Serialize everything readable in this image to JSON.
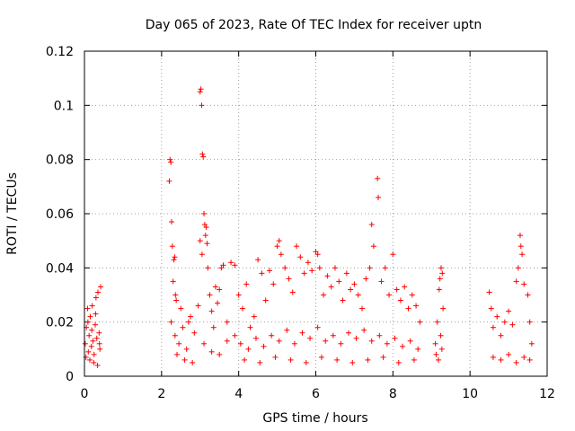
{
  "chart_data": {
    "type": "scatter",
    "title": "Day 065 of 2023, Rate Of TEC Index for receiver uptn",
    "xlabel": "GPS time / hours",
    "ylabel": "ROTI / TECUs",
    "xlim": [
      0,
      12
    ],
    "ylim": [
      0,
      0.12
    ],
    "x_ticks": [
      0,
      2,
      4,
      6,
      8,
      10,
      12
    ],
    "x_tick_labels": [
      "0",
      "2",
      "4",
      "6",
      "8",
      "10",
      "12"
    ],
    "y_ticks": [
      0,
      0.02,
      0.04,
      0.06,
      0.08,
      0.1,
      0.12
    ],
    "y_tick_labels": [
      "0",
      "0.02",
      "0.04",
      "0.06",
      "0.08",
      "0.1",
      "0.12"
    ],
    "grid": true,
    "marker": "+",
    "color": "#ff0000",
    "series": [
      {
        "name": "ROTI",
        "points": [
          [
            0.02,
            0.012
          ],
          [
            0.05,
            0.018
          ],
          [
            0.08,
            0.025
          ],
          [
            0.1,
            0.009
          ],
          [
            0.12,
            0.015
          ],
          [
            0.15,
            0.022
          ],
          [
            0.18,
            0.011
          ],
          [
            0.2,
            0.026
          ],
          [
            0.22,
            0.013
          ],
          [
            0.25,
            0.008
          ],
          [
            0.28,
            0.019
          ],
          [
            0.3,
            0.029
          ],
          [
            0.32,
            0.014
          ],
          [
            0.35,
            0.031
          ],
          [
            0.38,
            0.016
          ],
          [
            0.4,
            0.01
          ],
          [
            0.42,
            0.033
          ],
          [
            0.04,
            0.007
          ],
          [
            0.14,
            0.006
          ],
          [
            0.24,
            0.005
          ],
          [
            0.34,
            0.004
          ],
          [
            0.09,
            0.02
          ],
          [
            0.19,
            0.017
          ],
          [
            0.29,
            0.023
          ],
          [
            0.39,
            0.012
          ],
          [
            2.2,
            0.072
          ],
          [
            2.22,
            0.08
          ],
          [
            2.24,
            0.079
          ],
          [
            2.26,
            0.057
          ],
          [
            2.28,
            0.048
          ],
          [
            2.3,
            0.035
          ],
          [
            2.32,
            0.043
          ],
          [
            2.34,
            0.044
          ],
          [
            2.36,
            0.03
          ],
          [
            2.38,
            0.028
          ],
          [
            2.25,
            0.02
          ],
          [
            2.35,
            0.015
          ],
          [
            2.45,
            0.012
          ],
          [
            2.55,
            0.018
          ],
          [
            2.65,
            0.01
          ],
          [
            2.75,
            0.022
          ],
          [
            2.85,
            0.016
          ],
          [
            2.95,
            0.026
          ],
          [
            2.4,
            0.008
          ],
          [
            2.6,
            0.006
          ],
          [
            2.8,
            0.005
          ],
          [
            2.5,
            0.025
          ],
          [
            2.7,
            0.02
          ],
          [
            3.0,
            0.105
          ],
          [
            3.02,
            0.106
          ],
          [
            3.04,
            0.1
          ],
          [
            3.06,
            0.082
          ],
          [
            3.08,
            0.081
          ],
          [
            3.1,
            0.06
          ],
          [
            3.12,
            0.056
          ],
          [
            3.14,
            0.052
          ],
          [
            3.16,
            0.055
          ],
          [
            3.18,
            0.049
          ],
          [
            3.0,
            0.05
          ],
          [
            3.05,
            0.045
          ],
          [
            3.2,
            0.04
          ],
          [
            3.25,
            0.03
          ],
          [
            3.3,
            0.024
          ],
          [
            3.35,
            0.018
          ],
          [
            3.4,
            0.033
          ],
          [
            3.45,
            0.027
          ],
          [
            3.5,
            0.032
          ],
          [
            3.55,
            0.04
          ],
          [
            3.6,
            0.041
          ],
          [
            3.7,
            0.02
          ],
          [
            3.8,
            0.042
          ],
          [
            3.9,
            0.041
          ],
          [
            3.1,
            0.012
          ],
          [
            3.3,
            0.009
          ],
          [
            3.5,
            0.008
          ],
          [
            3.7,
            0.013
          ],
          [
            3.9,
            0.015
          ],
          [
            4.0,
            0.03
          ],
          [
            4.1,
            0.025
          ],
          [
            4.2,
            0.034
          ],
          [
            4.3,
            0.018
          ],
          [
            4.4,
            0.022
          ],
          [
            4.5,
            0.043
          ],
          [
            4.6,
            0.038
          ],
          [
            4.7,
            0.028
          ],
          [
            4.8,
            0.039
          ],
          [
            4.9,
            0.034
          ],
          [
            5.0,
            0.048
          ],
          [
            5.05,
            0.05
          ],
          [
            5.1,
            0.045
          ],
          [
            5.2,
            0.04
          ],
          [
            5.3,
            0.036
          ],
          [
            5.4,
            0.031
          ],
          [
            5.5,
            0.048
          ],
          [
            5.6,
            0.044
          ],
          [
            5.7,
            0.038
          ],
          [
            5.8,
            0.042
          ],
          [
            5.9,
            0.039
          ],
          [
            6.0,
            0.046
          ],
          [
            6.05,
            0.045
          ],
          [
            6.1,
            0.04
          ],
          [
            6.2,
            0.03
          ],
          [
            6.3,
            0.037
          ],
          [
            6.4,
            0.033
          ],
          [
            6.5,
            0.04
          ],
          [
            6.6,
            0.035
          ],
          [
            6.7,
            0.028
          ],
          [
            6.8,
            0.038
          ],
          [
            6.9,
            0.032
          ],
          [
            7.0,
            0.034
          ],
          [
            7.1,
            0.03
          ],
          [
            7.2,
            0.025
          ],
          [
            7.3,
            0.036
          ],
          [
            7.4,
            0.04
          ],
          [
            7.45,
            0.056
          ],
          [
            7.5,
            0.048
          ],
          [
            7.6,
            0.073
          ],
          [
            7.62,
            0.066
          ],
          [
            7.7,
            0.035
          ],
          [
            7.8,
            0.04
          ],
          [
            7.9,
            0.03
          ],
          [
            8.0,
            0.045
          ],
          [
            8.1,
            0.032
          ],
          [
            8.2,
            0.028
          ],
          [
            8.3,
            0.033
          ],
          [
            8.4,
            0.025
          ],
          [
            8.5,
            0.03
          ],
          [
            8.6,
            0.026
          ],
          [
            8.7,
            0.02
          ],
          [
            4.05,
            0.012
          ],
          [
            4.25,
            0.01
          ],
          [
            4.45,
            0.014
          ],
          [
            4.65,
            0.011
          ],
          [
            4.85,
            0.015
          ],
          [
            5.05,
            0.013
          ],
          [
            5.25,
            0.017
          ],
          [
            5.45,
            0.012
          ],
          [
            5.65,
            0.016
          ],
          [
            5.85,
            0.014
          ],
          [
            6.05,
            0.018
          ],
          [
            6.25,
            0.013
          ],
          [
            6.45,
            0.015
          ],
          [
            6.65,
            0.012
          ],
          [
            6.85,
            0.016
          ],
          [
            7.05,
            0.014
          ],
          [
            7.25,
            0.017
          ],
          [
            7.45,
            0.013
          ],
          [
            7.65,
            0.015
          ],
          [
            7.85,
            0.012
          ],
          [
            8.05,
            0.014
          ],
          [
            8.25,
            0.011
          ],
          [
            8.45,
            0.013
          ],
          [
            8.65,
            0.01
          ],
          [
            4.15,
            0.006
          ],
          [
            4.55,
            0.005
          ],
          [
            4.95,
            0.007
          ],
          [
            5.35,
            0.006
          ],
          [
            5.75,
            0.005
          ],
          [
            6.15,
            0.007
          ],
          [
            6.55,
            0.006
          ],
          [
            6.95,
            0.005
          ],
          [
            7.35,
            0.006
          ],
          [
            7.75,
            0.007
          ],
          [
            8.15,
            0.005
          ],
          [
            8.55,
            0.006
          ],
          [
            9.1,
            0.012
          ],
          [
            9.15,
            0.02
          ],
          [
            9.2,
            0.032
          ],
          [
            9.22,
            0.036
          ],
          [
            9.25,
            0.04
          ],
          [
            9.28,
            0.038
          ],
          [
            9.3,
            0.025
          ],
          [
            9.12,
            0.008
          ],
          [
            9.18,
            0.006
          ],
          [
            9.24,
            0.015
          ],
          [
            9.27,
            0.01
          ],
          [
            10.5,
            0.031
          ],
          [
            10.55,
            0.025
          ],
          [
            10.6,
            0.018
          ],
          [
            10.7,
            0.022
          ],
          [
            10.8,
            0.015
          ],
          [
            10.9,
            0.02
          ],
          [
            11.0,
            0.024
          ],
          [
            11.1,
            0.019
          ],
          [
            11.2,
            0.035
          ],
          [
            11.25,
            0.04
          ],
          [
            11.3,
            0.052
          ],
          [
            11.32,
            0.048
          ],
          [
            11.35,
            0.045
          ],
          [
            11.4,
            0.034
          ],
          [
            11.5,
            0.03
          ],
          [
            11.55,
            0.02
          ],
          [
            11.6,
            0.012
          ],
          [
            10.6,
            0.007
          ],
          [
            10.8,
            0.006
          ],
          [
            11.0,
            0.008
          ],
          [
            11.2,
            0.005
          ],
          [
            11.4,
            0.007
          ],
          [
            11.55,
            0.006
          ]
        ]
      }
    ]
  }
}
